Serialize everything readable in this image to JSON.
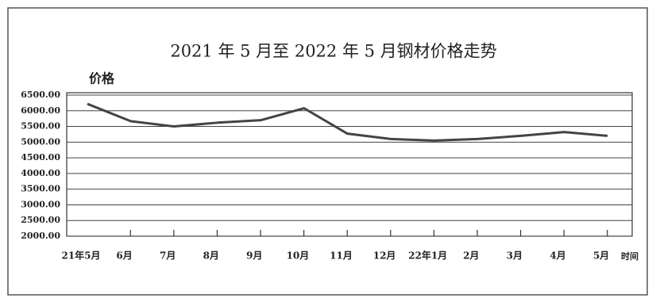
{
  "chart_data": {
    "type": "line",
    "title": "2021 年 5 月至 2022 年 5 月钢材价格走势",
    "ylabel": "价格",
    "xlabel": "时间",
    "categories": [
      "21年5月",
      "6月",
      "7月",
      "8月",
      "9月",
      "10月",
      "11月",
      "12月",
      "22年1月",
      "2月",
      "3月",
      "4月",
      "5月"
    ],
    "series": [
      {
        "name": "钢材价格",
        "color": "#444444",
        "values": [
          6220,
          5670,
          5500,
          5620,
          5700,
          6080,
          5270,
          5100,
          5050,
          5100,
          5200,
          5320,
          5200
        ]
      }
    ],
    "ylim": [
      2000,
      6500
    ],
    "yticks": [
      {
        "value": 2000,
        "label": "2000.00"
      },
      {
        "value": 2500,
        "label": "2500.00"
      },
      {
        "value": 3000,
        "label": "3000.00"
      },
      {
        "value": 3500,
        "label": "3500.00"
      },
      {
        "value": 4000,
        "label": "4000.00"
      },
      {
        "value": 4500,
        "label": "4500.00"
      },
      {
        "value": 5000,
        "label": "5000.00"
      },
      {
        "value": 5500,
        "label": "5500.00"
      },
      {
        "value": 6000,
        "label": "6000.00"
      },
      {
        "value": 6500,
        "label": "6500.00"
      }
    ],
    "grid": true
  }
}
